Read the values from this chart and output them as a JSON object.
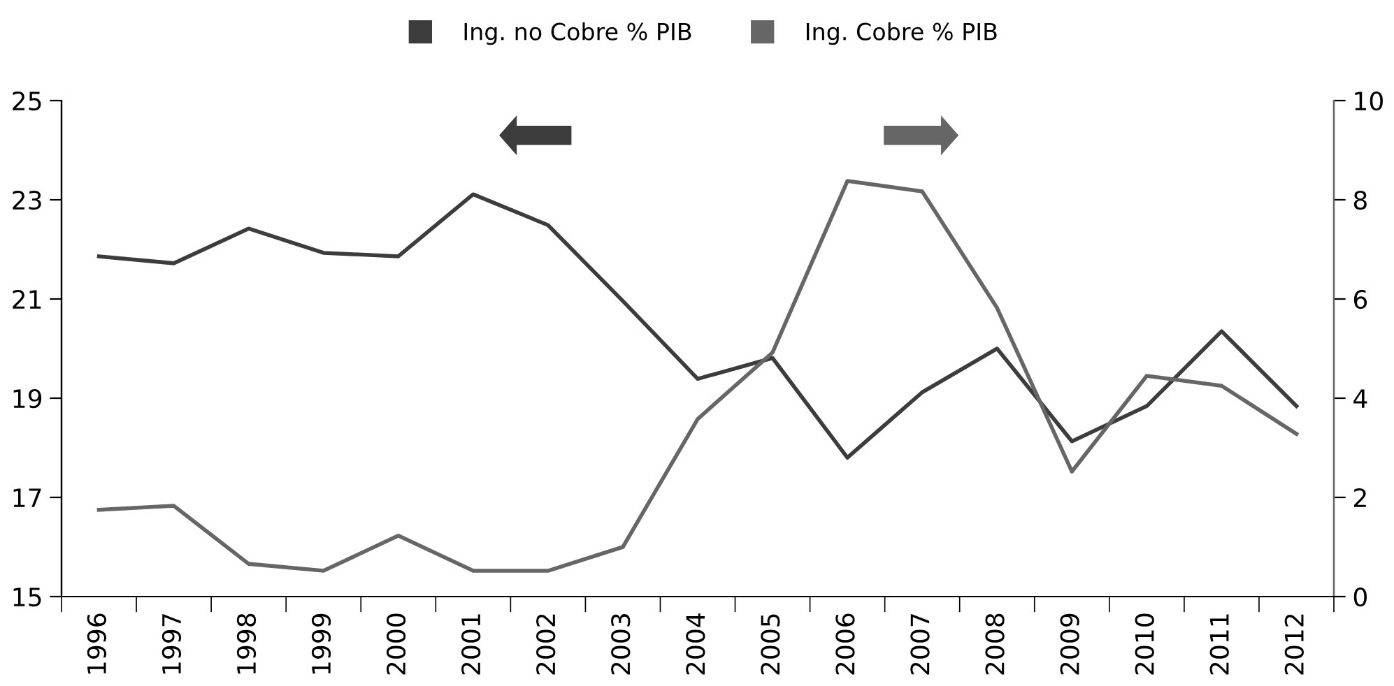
{
  "chart_data": {
    "type": "line",
    "categories": [
      "1996",
      "1997",
      "1998",
      "1999",
      "2000",
      "2001",
      "2002",
      "2003",
      "2004",
      "2005",
      "2006",
      "2007",
      "2008",
      "2009",
      "2010",
      "2011",
      "2012"
    ],
    "series": [
      {
        "name": "Ing. no Cobre % PIB",
        "color": "#3c3c3c",
        "values": [
          21.86,
          21.72,
          22.42,
          21.93,
          21.86,
          23.11,
          22.49,
          20.96,
          19.39,
          19.81,
          17.8,
          19.12,
          20.0,
          18.13,
          18.84,
          20.35,
          18.84
        ]
      },
      {
        "name": "Ing. Cobre % PIB",
        "color": "#666666",
        "axis": "y2",
        "values": [
          1.75,
          1.83,
          0.66,
          0.52,
          1.23,
          0.52,
          0.52,
          1.0,
          3.58,
          4.92,
          8.38,
          8.17,
          5.82,
          2.52,
          4.45,
          4.25,
          3.28
        ]
      }
    ],
    "ylim": [
      15,
      25
    ],
    "yticks": [
      15,
      17,
      19,
      21,
      23,
      25
    ],
    "y2lim": [
      0,
      10
    ],
    "y2ticks": [
      0,
      2,
      4,
      6,
      8,
      10
    ],
    "grid": false,
    "legend": "top",
    "marker": "none",
    "line_style": "solid"
  }
}
